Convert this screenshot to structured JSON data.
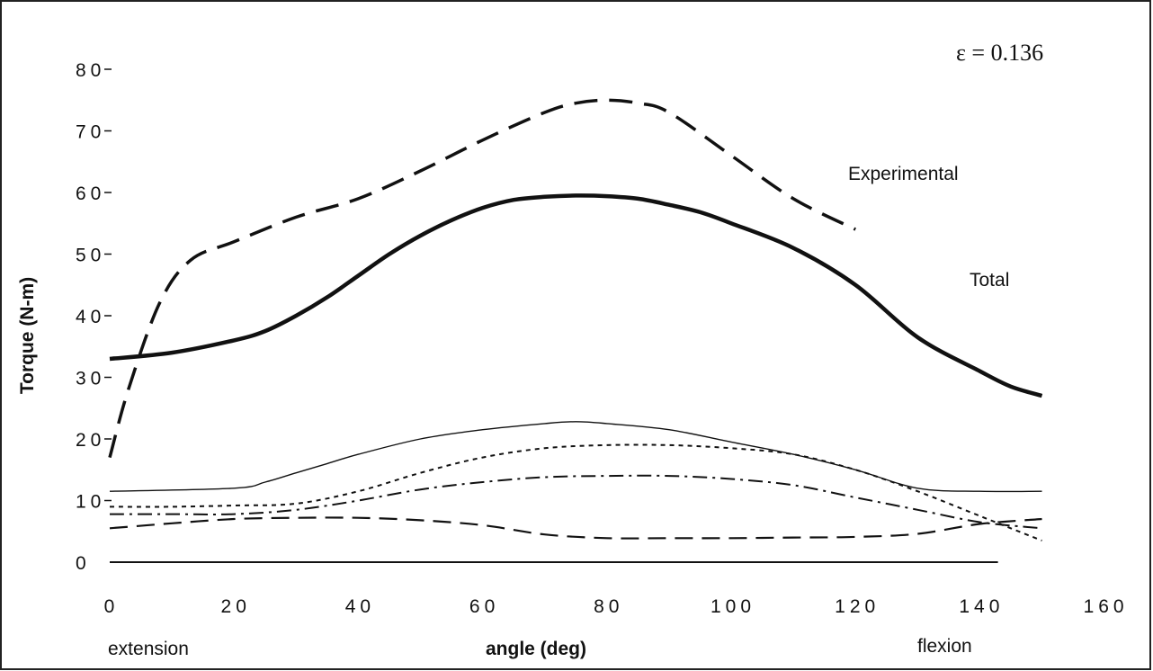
{
  "chart_data": {
    "type": "line",
    "title": "",
    "xlabel": "angle (deg)",
    "ylabel": "Torque (N-m)",
    "xlim": [
      0,
      160
    ],
    "ylim": [
      0,
      80
    ],
    "x_ticks": [
      "0",
      "20",
      "40",
      "60",
      "80",
      "100",
      "120",
      "140",
      "160"
    ],
    "y_ticks": [
      "0",
      "10",
      "20",
      "30",
      "40",
      "50",
      "60",
      "70",
      "80"
    ],
    "grid": false,
    "annotations": {
      "parameter": "ε = 0.136",
      "extension": "extension",
      "flexion": "flexion"
    },
    "series": [
      {
        "name": "Experimental",
        "style": "long-dash-thick",
        "x": [
          0,
          3,
          8,
          13,
          20,
          30,
          40,
          50,
          60,
          70,
          75,
          80,
          85,
          90,
          100,
          110,
          120
        ],
        "y": [
          17,
          28,
          42,
          49,
          52,
          56,
          59,
          63.5,
          68.5,
          73,
          74.5,
          75,
          74.5,
          73,
          66,
          59,
          54
        ]
      },
      {
        "name": "Total",
        "style": "solid-thick",
        "x": [
          0,
          10,
          20,
          25,
          30,
          35,
          40,
          45,
          50,
          55,
          60,
          65,
          70,
          75,
          80,
          85,
          90,
          95,
          100,
          110,
          120,
          130,
          140,
          145,
          150
        ],
        "y": [
          33,
          34,
          36,
          37.5,
          40,
          43,
          46.5,
          50,
          53,
          55.5,
          57.5,
          58.8,
          59.3,
          59.5,
          59.4,
          59,
          58,
          56.8,
          55,
          51,
          45,
          36.5,
          31,
          28.5,
          27
        ]
      },
      {
        "style": "solid-thin",
        "x": [
          0,
          20,
          25,
          30,
          35,
          40,
          50,
          60,
          70,
          75,
          80,
          90,
          100,
          110,
          120,
          130,
          140,
          150
        ],
        "y": [
          11.5,
          12,
          13,
          14.5,
          16,
          17.5,
          20,
          21.5,
          22.5,
          22.8,
          22.5,
          21.5,
          19.5,
          17.5,
          15,
          12,
          11.5,
          11.5
        ]
      },
      {
        "style": "short-dash",
        "x": [
          0,
          10,
          20,
          30,
          40,
          50,
          60,
          70,
          80,
          90,
          100,
          110,
          120,
          130,
          140,
          150
        ],
        "y": [
          9,
          9,
          9.2,
          9.5,
          11.5,
          14.5,
          17,
          18.5,
          19,
          19,
          18.5,
          17.5,
          15,
          11.5,
          7.5,
          3.5
        ]
      },
      {
        "style": "dash-dot",
        "x": [
          0,
          10,
          20,
          30,
          40,
          50,
          60,
          70,
          80,
          90,
          100,
          110,
          120,
          130,
          140,
          150
        ],
        "y": [
          7.8,
          7.8,
          7.8,
          8.5,
          10,
          11.8,
          13,
          13.8,
          14,
          14,
          13.5,
          12.5,
          10.5,
          8.5,
          6.5,
          5.5
        ]
      },
      {
        "style": "long-dash-thin",
        "x": [
          0,
          10,
          20,
          30,
          40,
          50,
          60,
          70,
          80,
          90,
          100,
          110,
          120,
          130,
          140,
          150
        ],
        "y": [
          5.5,
          6.3,
          7,
          7.2,
          7.2,
          6.8,
          6,
          4.5,
          3.9,
          3.9,
          3.9,
          4,
          4.1,
          4.6,
          6.2,
          7
        ]
      }
    ]
  }
}
